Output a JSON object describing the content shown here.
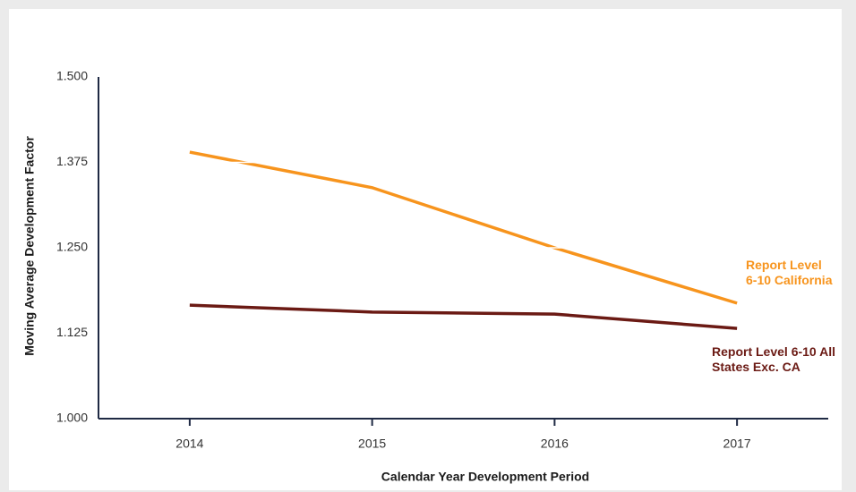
{
  "chart_data": {
    "type": "line",
    "x_label": "Calendar Year Development Period",
    "y_label": "Moving Average Development Factor",
    "categories": [
      "2014",
      "2015",
      "2016",
      "2017"
    ],
    "series": [
      {
        "name": "Report Level 6-10 California",
        "color": "#f7941d",
        "values": [
          1.39,
          1.338,
          1.25,
          1.169
        ]
      },
      {
        "name": "Report Level 6-10 All States Exc. CA",
        "color": "#6b1a14",
        "values": [
          1.166,
          1.156,
          1.153,
          1.132
        ]
      }
    ],
    "ylim": [
      1.0,
      1.5
    ],
    "yticks": [
      {
        "value": 1.0,
        "label": "1.000"
      },
      {
        "value": 1.125,
        "label": "1.125"
      },
      {
        "value": 1.25,
        "label": "1.250"
      },
      {
        "value": 1.375,
        "label": "1.375"
      },
      {
        "value": 1.5,
        "label": "1.500"
      }
    ],
    "grid": true,
    "axis_color": "#1f2a44",
    "grid_color": "#ffffff"
  }
}
